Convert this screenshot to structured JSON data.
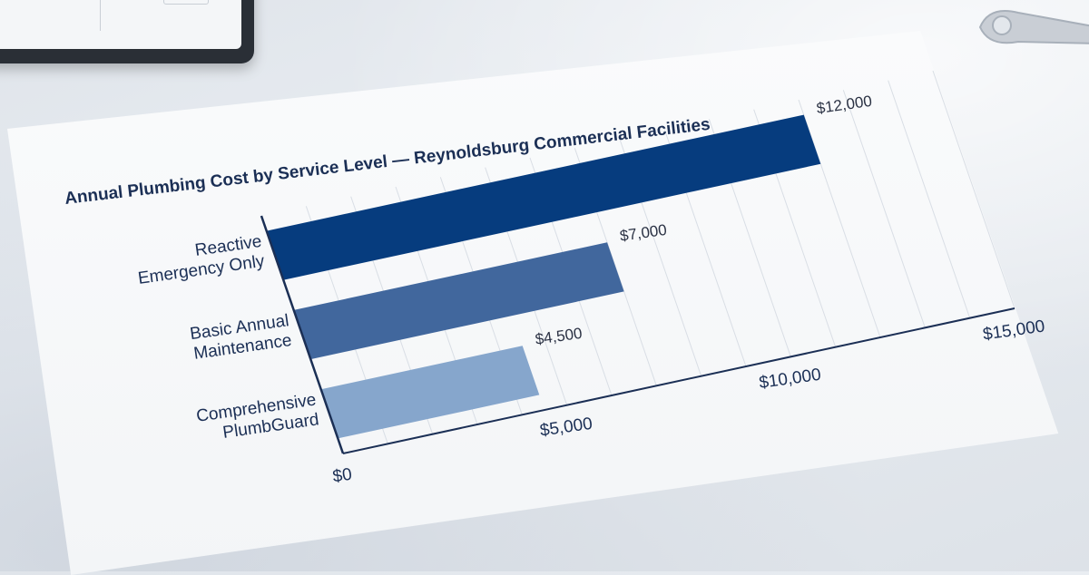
{
  "chart_data": {
    "type": "bar",
    "orientation": "horizontal",
    "title": "Annual Plumbing Cost by Service Level — Reynoldsburg Commercial Facilities",
    "categories": [
      [
        "Reactive",
        "Emergency Only"
      ],
      [
        "Basic Annual",
        "Maintenance"
      ],
      [
        "Comprehensive",
        "PlumbGuard"
      ]
    ],
    "values": [
      12000,
      7000,
      4500
    ],
    "value_labels": [
      "$12,000",
      "$7,000",
      "$4,500"
    ],
    "bar_colors": [
      "#063c7e",
      "#41679d",
      "#86a6cc"
    ],
    "xlim": [
      0,
      15000
    ],
    "ticks": [
      0,
      5000,
      10000,
      15000
    ],
    "tick_labels": [
      "$0",
      "$5,000",
      "$10,000",
      "$15,000"
    ],
    "grid": true,
    "legend": "none"
  }
}
